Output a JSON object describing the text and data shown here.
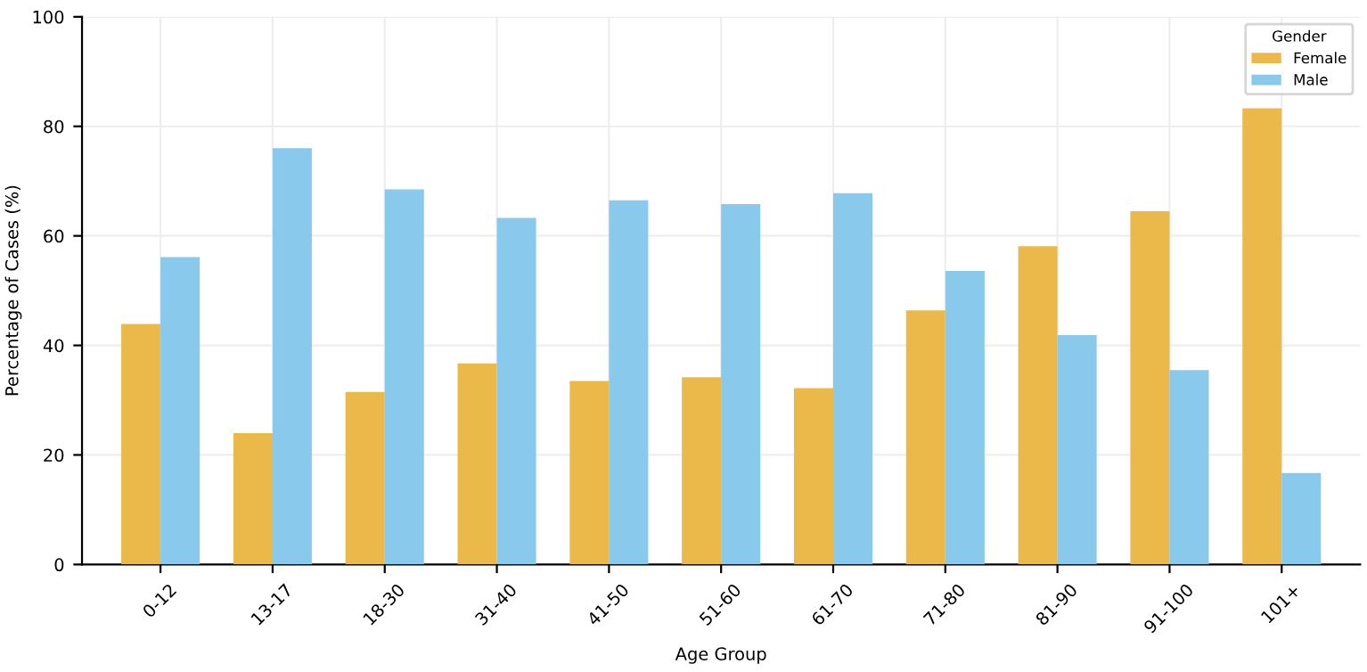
{
  "chart_data": {
    "type": "bar",
    "xlabel": "Age Group",
    "ylabel": "Percentage of Cases (%)",
    "legend_title": "Gender",
    "categories": [
      "0-12",
      "13-17",
      "18-30",
      "31-40",
      "41-50",
      "51-60",
      "61-70",
      "71-80",
      "81-90",
      "91-100",
      "101+"
    ],
    "series": [
      {
        "name": "Female",
        "color": "#ebb84a",
        "values": [
          43.9,
          24.0,
          31.5,
          36.7,
          33.5,
          34.2,
          32.2,
          46.4,
          58.1,
          64.5,
          83.3
        ]
      },
      {
        "name": "Male",
        "color": "#89c9ec",
        "values": [
          56.1,
          76.0,
          68.5,
          63.3,
          66.5,
          65.8,
          67.8,
          53.6,
          41.9,
          35.5,
          16.7
        ]
      }
    ],
    "ylim": [
      0,
      100
    ],
    "yticks": [
      0,
      20,
      40,
      60,
      80,
      100
    ],
    "grid": true,
    "legend": "top right"
  }
}
